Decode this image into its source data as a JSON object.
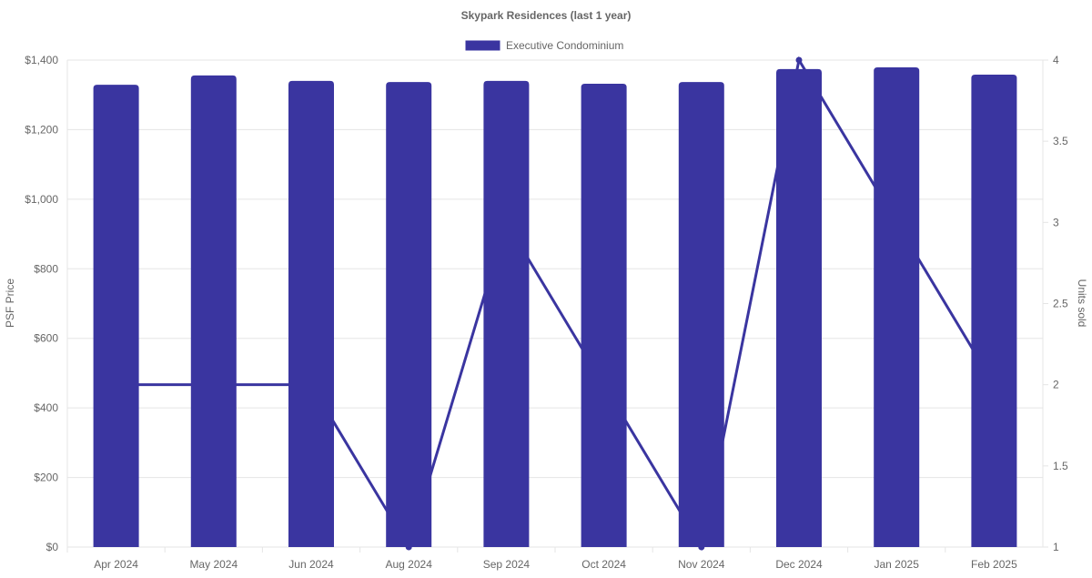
{
  "chart_data": {
    "type": "bar",
    "title": "Skypark Residences (last 1 year)",
    "categories": [
      "Apr 2024",
      "May 2024",
      "Jun 2024",
      "Aug 2024",
      "Sep 2024",
      "Oct 2024",
      "Nov 2024",
      "Dec 2024",
      "Jan 2025",
      "Feb 2025"
    ],
    "series": [
      {
        "name": "Executive Condominium",
        "type": "bar",
        "axis": "left",
        "color": "#3a35a0",
        "values": [
          1329,
          1356,
          1340,
          1337,
          1340,
          1332,
          1337,
          1374,
          1379,
          1358
        ]
      },
      {
        "type": "line",
        "axis": "right",
        "color": "#3a35a0",
        "values": [
          2,
          2,
          2,
          1,
          3,
          2,
          1,
          4,
          3,
          2
        ]
      }
    ],
    "ylabel": "PSF Price",
    "y2label": "Units sold",
    "ylim": [
      0,
      1400
    ],
    "yticks": [
      "$0",
      "$200",
      "$400",
      "$600",
      "$800",
      "$1,000",
      "$1,200",
      "$1,400"
    ],
    "y2lim": [
      1,
      4
    ],
    "y2ticks": [
      "1",
      "1.5",
      "2",
      "2.5",
      "3",
      "3.5",
      "4"
    ],
    "grid": true,
    "legend": "top"
  }
}
